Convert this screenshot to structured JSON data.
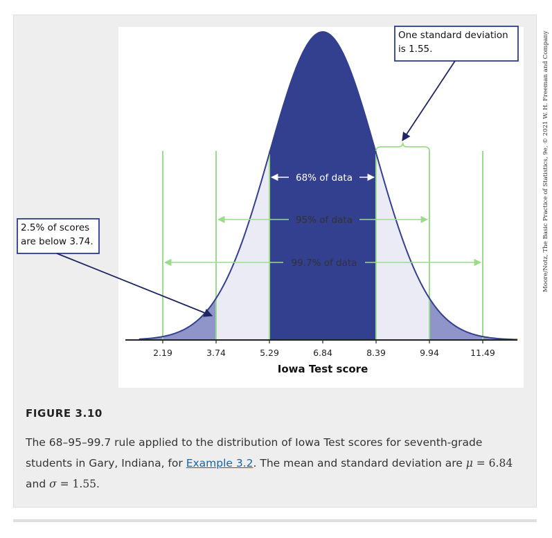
{
  "chart_data": {
    "type": "area",
    "distribution": "normal",
    "mean": 6.84,
    "sd": 1.55,
    "xlabel": "Iowa Test score",
    "ticks": [
      "2.19",
      "3.74",
      "5.29",
      "6.84",
      "8.39",
      "9.94",
      "11.49"
    ],
    "tick_values": [
      2.19,
      3.74,
      5.29,
      6.84,
      8.39,
      9.94,
      11.49
    ],
    "xlim": [
      1.5,
      12.5
    ],
    "bands": [
      {
        "label": "68% of data",
        "from": 5.29,
        "to": 8.39
      },
      {
        "label": "95% of data",
        "from": 3.74,
        "to": 9.94
      },
      {
        "label": "99.7% of data",
        "from": 2.19,
        "to": 11.49
      }
    ],
    "shaded_tail": {
      "below": 3.74,
      "above": 9.94
    },
    "annotations": {
      "sd_callout": [
        "One standard deviation",
        "is 1.55."
      ],
      "tail_callout": [
        "2.5% of scores",
        "are below 3.74."
      ]
    },
    "credit": "Moore/Notz, The Basic Practice of Statistics, 9e, © 2021 W. H. Freeman and Company",
    "colors": {
      "dark_fill": "#333f8f",
      "light_fill": "#ebebf5",
      "tail_fill": "#8f95c8",
      "line": "#9adc8c",
      "axis": "#222222",
      "panel_bg": "#ffffff"
    }
  },
  "figure": {
    "label": "FIGURE 3.10",
    "caption_part1": "The 68–95–99.7 rule applied to the distribution of Iowa Test scores for seventh-grade students in Gary, Indiana, for ",
    "caption_link": "Example 3.2",
    "caption_part2": ". The mean and standard deviation are ",
    "mu_symbol": "μ",
    "mu_value": " = 6.84",
    "caption_and": " and ",
    "sigma_symbol": "σ",
    "sigma_value": " = 1.55",
    "caption_end": "."
  }
}
